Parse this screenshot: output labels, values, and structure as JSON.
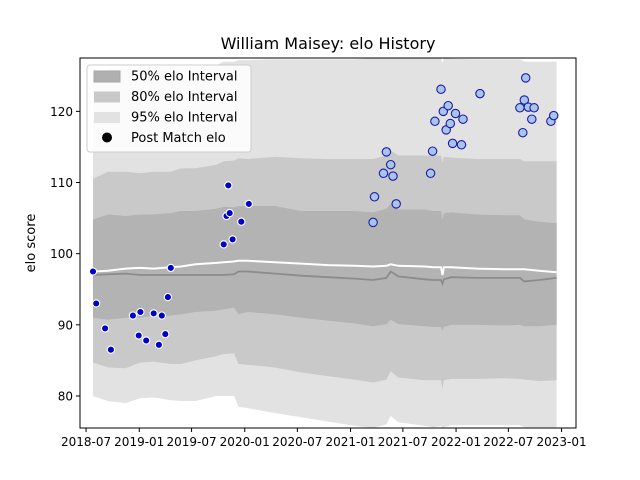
{
  "chart_data": {
    "type": "scatter",
    "title": "William Maisey: elo History",
    "xlabel": "",
    "ylabel": "elo score",
    "xlim": [
      "2018-06-10",
      "2023-02-20"
    ],
    "ylim": [
      75.5,
      127.5
    ],
    "x_ticks": [
      "2018-07",
      "2019-01",
      "2019-07",
      "2020-01",
      "2020-07",
      "2021-01",
      "2021-07",
      "2022-01",
      "2022-07",
      "2023-01"
    ],
    "x_tick_labels": [
      "2018-07",
      "2019-01",
      "2019-07",
      "2020-01",
      "2020-07",
      "2021-01",
      "2021-07",
      "2022-01",
      "2022-07",
      "2023-01"
    ],
    "y_ticks": [
      80,
      90,
      100,
      110,
      120
    ],
    "grid": false,
    "legend": {
      "position": "top-left",
      "entries": [
        {
          "label": "50% elo Interval",
          "color": "#b0b0b0"
        },
        {
          "label": "80% elo Interval",
          "color": "#c8c8c8"
        },
        {
          "label": "95% elo Interval",
          "color": "#e2e2e2"
        },
        {
          "label": "Post Match elo",
          "color": "#000000"
        }
      ]
    },
    "band_dates": [
      "2018-07-25",
      "2018-09-15",
      "2018-11-15",
      "2019-01-05",
      "2019-02-20",
      "2019-04-20",
      "2019-05-25",
      "2019-07-15",
      "2019-09-25",
      "2019-10-20",
      "2019-11-25",
      "2019-12-10",
      "2020-01-10",
      "2020-04-15",
      "2020-07-15",
      "2020-10-15",
      "2021-01-15",
      "2021-03-20",
      "2021-05-05",
      "2021-05-20",
      "2021-06-15",
      "2021-09-15",
      "2021-10-15",
      "2021-11-10",
      "2021-11-15",
      "2021-11-20",
      "2021-12-15",
      "2022-03-15",
      "2022-06-15",
      "2022-08-10",
      "2022-08-25",
      "2022-10-15",
      "2022-12-15"
    ],
    "series": [
      {
        "name": "Post Match elo",
        "kind": "points",
        "points": [
          {
            "x": "2018-07-25",
            "y": 97.5
          },
          {
            "x": "2018-08-05",
            "y": 93.0
          },
          {
            "x": "2018-09-05",
            "y": 89.5
          },
          {
            "x": "2018-09-25",
            "y": 86.5
          },
          {
            "x": "2018-12-10",
            "y": 91.3
          },
          {
            "x": "2018-12-30",
            "y": 88.5
          },
          {
            "x": "2019-01-05",
            "y": 91.8
          },
          {
            "x": "2019-01-25",
            "y": 87.8
          },
          {
            "x": "2019-02-20",
            "y": 91.6
          },
          {
            "x": "2019-03-10",
            "y": 87.2
          },
          {
            "x": "2019-03-20",
            "y": 91.3
          },
          {
            "x": "2019-04-01",
            "y": 88.7
          },
          {
            "x": "2019-04-10",
            "y": 93.9
          },
          {
            "x": "2019-04-20",
            "y": 98.0
          },
          {
            "x": "2019-10-20",
            "y": 101.3
          },
          {
            "x": "2019-10-30",
            "y": 105.3
          },
          {
            "x": "2019-11-05",
            "y": 109.6
          },
          {
            "x": "2019-11-10",
            "y": 105.7
          },
          {
            "x": "2019-11-20",
            "y": 102.0
          },
          {
            "x": "2019-12-20",
            "y": 104.5
          },
          {
            "x": "2020-01-15",
            "y": 107.0
          },
          {
            "x": "2021-03-20",
            "y": 104.4
          },
          {
            "x": "2021-03-25",
            "y": 108.0
          },
          {
            "x": "2021-04-25",
            "y": 111.3
          },
          {
            "x": "2021-05-05",
            "y": 114.3
          },
          {
            "x": "2021-05-20",
            "y": 112.5
          },
          {
            "x": "2021-05-28",
            "y": 110.9
          },
          {
            "x": "2021-06-08",
            "y": 107.0
          },
          {
            "x": "2021-10-05",
            "y": 111.3
          },
          {
            "x": "2021-10-12",
            "y": 114.4
          },
          {
            "x": "2021-10-20",
            "y": 118.6
          },
          {
            "x": "2021-11-10",
            "y": 123.1
          },
          {
            "x": "2021-11-18",
            "y": 120.0
          },
          {
            "x": "2021-11-28",
            "y": 117.4
          },
          {
            "x": "2021-12-05",
            "y": 120.8
          },
          {
            "x": "2021-12-12",
            "y": 118.3
          },
          {
            "x": "2021-12-20",
            "y": 115.5
          },
          {
            "x": "2021-12-30",
            "y": 119.7
          },
          {
            "x": "2022-01-20",
            "y": 115.3
          },
          {
            "x": "2022-01-25",
            "y": 118.9
          },
          {
            "x": "2022-03-25",
            "y": 122.5
          },
          {
            "x": "2022-08-10",
            "y": 120.5
          },
          {
            "x": "2022-08-20",
            "y": 117.0
          },
          {
            "x": "2022-08-25",
            "y": 121.6
          },
          {
            "x": "2022-08-30",
            "y": 124.7
          },
          {
            "x": "2022-09-08",
            "y": 120.6
          },
          {
            "x": "2022-09-20",
            "y": 118.9
          },
          {
            "x": "2022-09-28",
            "y": 120.5
          },
          {
            "x": "2022-11-25",
            "y": 118.6
          },
          {
            "x": "2022-12-05",
            "y": 119.4
          }
        ]
      },
      {
        "name": "mean elo",
        "kind": "line",
        "values": [
          97.5,
          97.6,
          97.9,
          98.0,
          97.9,
          98.1,
          98.2,
          98.5,
          98.7,
          98.8,
          98.9,
          99.0,
          99.0,
          98.8,
          98.6,
          98.4,
          98.3,
          98.2,
          98.3,
          98.5,
          98.3,
          98.2,
          98.1,
          98.1,
          97.0,
          98.1,
          98.1,
          97.9,
          97.8,
          97.8,
          97.8,
          97.6,
          97.4
        ]
      },
      {
        "name": "median elo",
        "kind": "line",
        "values": [
          97.0,
          97.1,
          97.2,
          97.0,
          97.0,
          97.0,
          97.0,
          97.0,
          97.0,
          97.0,
          97.1,
          97.5,
          97.5,
          97.2,
          96.9,
          96.7,
          96.5,
          96.3,
          96.6,
          97.5,
          96.8,
          96.4,
          96.3,
          96.3,
          95.8,
          96.4,
          96.7,
          96.6,
          96.6,
          96.6,
          96.1,
          96.3,
          96.6
        ]
      },
      {
        "name": "50% elo Interval",
        "kind": "band",
        "lower": [
          91.0,
          90.7,
          91.0,
          91.0,
          91.3,
          91.3,
          91.5,
          91.8,
          92.0,
          92.2,
          92.4,
          91.5,
          91.8,
          91.5,
          91.0,
          90.6,
          90.2,
          89.8,
          90.1,
          90.7,
          90.1,
          89.8,
          89.7,
          89.7,
          89.2,
          89.7,
          90.0,
          90.0,
          89.9,
          90.0,
          89.8,
          89.8,
          90.0
        ],
        "upper": [
          104.8,
          105.5,
          105.3,
          105.5,
          105.5,
          105.7,
          106.0,
          106.0,
          106.3,
          106.6,
          106.5,
          106.7,
          106.7,
          106.7,
          106.0,
          106.0,
          106.0,
          105.8,
          106.3,
          107.0,
          106.2,
          106.2,
          106.0,
          106.0,
          104.8,
          105.7,
          105.8,
          105.5,
          105.4,
          105.4,
          104.8,
          104.5,
          104.3
        ]
      },
      {
        "name": "80% elo Interval",
        "kind": "band",
        "lower": [
          84.7,
          84.0,
          83.9,
          84.7,
          84.8,
          84.5,
          84.5,
          85.0,
          85.6,
          85.9,
          86.0,
          84.5,
          84.4,
          84.0,
          83.3,
          82.8,
          82.3,
          81.9,
          82.3,
          83.5,
          82.6,
          82.2,
          82.2,
          82.2,
          81.0,
          82.2,
          82.4,
          82.4,
          82.5,
          82.4,
          82.3,
          82.1,
          82.2
        ],
        "upper": [
          110.5,
          111.5,
          111.5,
          111.3,
          111.5,
          111.5,
          112.0,
          112.0,
          112.5,
          113.0,
          113.1,
          113.4,
          113.3,
          113.6,
          113.4,
          113.3,
          113.3,
          113.3,
          113.8,
          114.5,
          113.8,
          113.8,
          113.8,
          113.8,
          112.8,
          113.6,
          113.5,
          113.3,
          113.3,
          113.3,
          113.0,
          113.0,
          113.0
        ]
      },
      {
        "name": "95% elo Interval",
        "kind": "band",
        "lower": [
          80.0,
          79.3,
          79.0,
          79.7,
          79.8,
          79.4,
          79.3,
          79.3,
          80.0,
          80.0,
          80.0,
          78.5,
          78.3,
          77.6,
          77.0,
          76.4,
          75.8,
          75.5,
          76.0,
          77.2,
          76.3,
          75.8,
          75.6,
          75.8,
          74.5,
          75.6,
          75.9,
          75.9,
          75.9,
          75.9,
          75.6,
          75.6,
          75.6
        ],
        "upper": [
          125.0,
          126.0,
          126.0,
          126.0,
          126.3,
          126.3,
          126.3,
          126.3,
          126.5,
          127.0,
          127.0,
          127.2,
          127.2,
          127.3,
          127.3,
          127.3,
          127.3,
          127.5,
          127.6,
          128.0,
          127.6,
          127.6,
          127.6,
          127.6,
          126.8,
          127.5,
          127.4,
          127.3,
          127.3,
          127.3,
          127.0,
          127.0,
          127.0
        ]
      }
    ]
  }
}
